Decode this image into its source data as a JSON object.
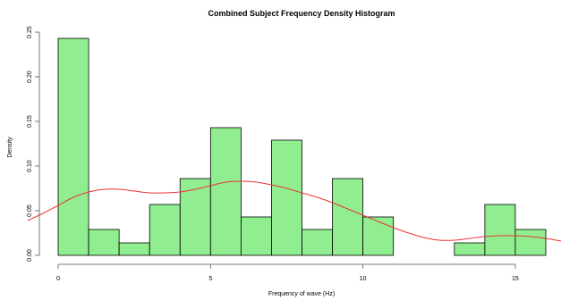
{
  "chart_data": {
    "type": "histogram",
    "title": "Combined Subject Frequency Density Histogram",
    "xlabel": "Frequency of wave (Hz)",
    "ylabel": "Density",
    "xlim": [
      -1,
      16
    ],
    "ylim": [
      0,
      0.25
    ],
    "x_ticks": [
      0,
      5,
      10,
      15
    ],
    "x_tick_labels": [
      "0",
      "5",
      "10",
      "15"
    ],
    "y_ticks": [
      0,
      0.05,
      0.1,
      0.15,
      0.2,
      0.25
    ],
    "y_tick_labels": [
      "0.00",
      "0.05",
      "0.10",
      "0.15",
      "0.20",
      "0.25"
    ],
    "bins": [
      {
        "start": 0,
        "end": 1,
        "density": 0.243
      },
      {
        "start": 1,
        "end": 2,
        "density": 0.029
      },
      {
        "start": 2,
        "end": 3,
        "density": 0.014
      },
      {
        "start": 3,
        "end": 4,
        "density": 0.057
      },
      {
        "start": 4,
        "end": 5,
        "density": 0.086
      },
      {
        "start": 5,
        "end": 6,
        "density": 0.143
      },
      {
        "start": 6,
        "end": 7,
        "density": 0.043
      },
      {
        "start": 7,
        "end": 8,
        "density": 0.129
      },
      {
        "start": 8,
        "end": 9,
        "density": 0.029
      },
      {
        "start": 9,
        "end": 10,
        "density": 0.086
      },
      {
        "start": 10,
        "end": 11,
        "density": 0.043
      },
      {
        "start": 11,
        "end": 12,
        "density": 0.0
      },
      {
        "start": 12,
        "end": 13,
        "density": 0.0
      },
      {
        "start": 13,
        "end": 14,
        "density": 0.014
      },
      {
        "start": 14,
        "end": 15,
        "density": 0.057
      },
      {
        "start": 15,
        "end": 16,
        "density": 0.029
      }
    ],
    "density_curve": {
      "x": [
        -1,
        -0.5,
        0,
        0.5,
        1,
        1.5,
        2,
        2.5,
        3,
        3.5,
        4,
        4.5,
        5,
        5.5,
        6,
        6.5,
        7,
        7.5,
        8,
        8.5,
        9,
        9.5,
        10,
        10.5,
        11,
        11.5,
        12,
        12.5,
        13,
        13.5,
        14,
        14.5,
        15,
        15.5,
        16,
        16.5
      ],
      "y": [
        0.039,
        0.047,
        0.056,
        0.065,
        0.071,
        0.074,
        0.074,
        0.072,
        0.07,
        0.07,
        0.071,
        0.074,
        0.078,
        0.082,
        0.083,
        0.082,
        0.079,
        0.075,
        0.07,
        0.065,
        0.059,
        0.052,
        0.045,
        0.038,
        0.031,
        0.025,
        0.02,
        0.017,
        0.017,
        0.019,
        0.021,
        0.022,
        0.022,
        0.021,
        0.019,
        0.016
      ]
    },
    "colors": {
      "bar_fill": "#90ee90",
      "bar_stroke": "#000000",
      "curve": "#ee3333",
      "axis": "#555555"
    },
    "grid": false
  }
}
